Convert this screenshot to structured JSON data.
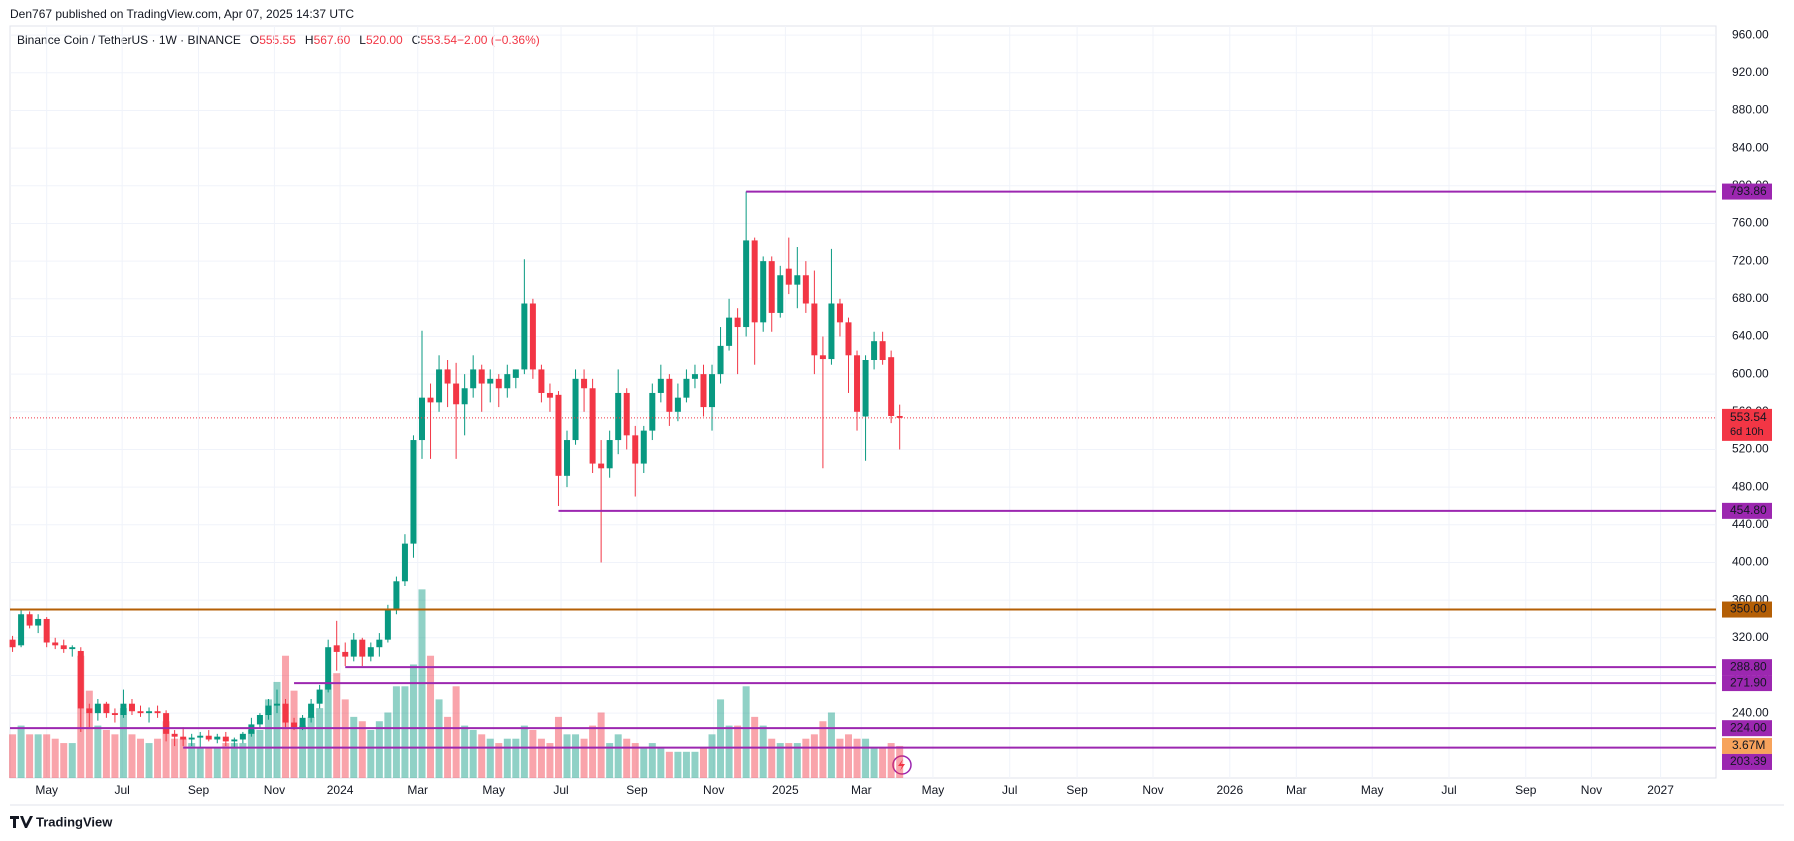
{
  "header": "Den767 published on TradingView.com, Apr 07, 2025 14:37 UTC",
  "footer": "TradingView",
  "chart_data": {
    "type": "candlestick",
    "title": "Binance Coin / TetherUS · 1W · BINANCE",
    "legend": [
      {
        "key": "O",
        "value": "555.55"
      },
      {
        "key": "H",
        "value": "567.60"
      },
      {
        "key": "L",
        "value": "520.00"
      },
      {
        "key": "C",
        "value": "553.54"
      },
      {
        "key": "",
        "value": "−2.00 (−0.36%)"
      }
    ],
    "up_color": "#089981",
    "down_color": "#f23645",
    "x": [
      0,
      1,
      2,
      3,
      4,
      5,
      6,
      7,
      8,
      9,
      10,
      11,
      12,
      13,
      14,
      15,
      16,
      17,
      18,
      19,
      20,
      21,
      22,
      23,
      24,
      25,
      26,
      27,
      28,
      29,
      30,
      31,
      32,
      33,
      34,
      35,
      36,
      37,
      38,
      39,
      40,
      41,
      42,
      43,
      44,
      45,
      46,
      47,
      48,
      49,
      50,
      51,
      52,
      53,
      54,
      55,
      56,
      57,
      58,
      59,
      60,
      61,
      62,
      63,
      64,
      65,
      66,
      67,
      68,
      69,
      70,
      71,
      72,
      73,
      74,
      75,
      76,
      77,
      78,
      79,
      80,
      81,
      82,
      83,
      84,
      85,
      86,
      87,
      88,
      89,
      90,
      91,
      92,
      93,
      94,
      95,
      96,
      97,
      98,
      99,
      100,
      101,
      102,
      103,
      104
    ],
    "open": [
      318,
      312,
      345,
      333,
      340,
      315,
      312,
      308,
      306,
      245,
      240,
      250,
      240,
      238,
      250,
      242,
      240,
      242,
      240,
      218,
      215,
      212,
      214,
      216,
      212,
      215,
      210,
      212,
      218,
      228,
      238,
      248,
      250,
      230,
      225,
      235,
      250,
      265,
      312,
      305,
      300,
      318,
      300,
      310,
      318,
      350,
      380,
      420,
      530,
      575,
      570,
      605,
      590,
      568,
      585,
      605,
      590,
      595,
      585,
      596,
      605,
      675,
      605,
      580,
      578,
      492,
      530,
      595,
      585,
      505,
      500,
      530,
      580,
      535,
      505,
      540,
      580,
      595,
      560,
      575,
      595,
      600,
      565,
      600,
      630,
      660,
      650,
      742,
      655,
      720,
      665,
      712,
      695,
      705,
      675,
      620,
      616,
      675,
      655,
      620,
      555,
      615,
      635,
      618,
      555.55
    ],
    "high": [
      322,
      350,
      348,
      345,
      342,
      320,
      318,
      312,
      310,
      250,
      255,
      252,
      245,
      265,
      255,
      248,
      246,
      248,
      243,
      222,
      225,
      218,
      220,
      222,
      218,
      220,
      214,
      220,
      235,
      240,
      255,
      265,
      255,
      235,
      238,
      255,
      270,
      318,
      338,
      315,
      325,
      320,
      315,
      325,
      355,
      385,
      430,
      535,
      646,
      590,
      620,
      615,
      612,
      600,
      620,
      610,
      605,
      600,
      610,
      605,
      722,
      680,
      610,
      590,
      582,
      540,
      605,
      605,
      595,
      530,
      540,
      605,
      585,
      545,
      545,
      590,
      610,
      600,
      590,
      605,
      610,
      610,
      610,
      650,
      680,
      670,
      794,
      745,
      725,
      725,
      715,
      745,
      735,
      720,
      710,
      640,
      733,
      680,
      660,
      625,
      620,
      645,
      645,
      625,
      567.6
    ],
    "low": [
      305,
      310,
      330,
      325,
      310,
      308,
      304,
      300,
      220,
      225,
      232,
      235,
      230,
      235,
      238,
      236,
      230,
      235,
      210,
      205,
      205,
      205,
      203,
      210,
      208,
      205,
      203,
      208,
      215,
      224,
      233,
      240,
      225,
      222,
      222,
      230,
      245,
      262,
      285,
      290,
      295,
      290,
      295,
      300,
      315,
      345,
      375,
      405,
      510,
      510,
      560,
      565,
      510,
      535,
      575,
      560,
      570,
      565,
      575,
      585,
      600,
      595,
      570,
      560,
      460,
      480,
      525,
      560,
      495,
      400,
      490,
      515,
      520,
      470,
      495,
      530,
      570,
      545,
      550,
      570,
      585,
      555,
      540,
      590,
      625,
      600,
      640,
      610,
      645,
      645,
      660,
      685,
      670,
      665,
      600,
      500,
      610,
      640,
      580,
      540,
      508,
      605,
      610,
      548,
      520
    ],
    "close": [
      310,
      345,
      333,
      340,
      315,
      312,
      308,
      310,
      245,
      240,
      250,
      240,
      238,
      250,
      242,
      240,
      242,
      240,
      218,
      215,
      212,
      214,
      216,
      212,
      215,
      210,
      212,
      218,
      228,
      238,
      248,
      250,
      230,
      225,
      235,
      250,
      265,
      310,
      305,
      300,
      318,
      300,
      310,
      318,
      350,
      380,
      420,
      530,
      575,
      570,
      605,
      590,
      568,
      585,
      605,
      590,
      595,
      585,
      600,
      605,
      675,
      605,
      580,
      575,
      492,
      530,
      595,
      585,
      505,
      500,
      530,
      580,
      535,
      505,
      540,
      580,
      595,
      560,
      575,
      595,
      600,
      565,
      600,
      630,
      660,
      650,
      742,
      655,
      720,
      665,
      705,
      695,
      705,
      675,
      620,
      616,
      675,
      655,
      620,
      560,
      615,
      635,
      615,
      555.55,
      553.54
    ],
    "volume": [
      5,
      6,
      5,
      5,
      5,
      4.5,
      4,
      4,
      14,
      10,
      6,
      5.5,
      5,
      8,
      5,
      4.5,
      4,
      4.5,
      6.5,
      4.5,
      4.5,
      4,
      3.5,
      3.5,
      3.5,
      4,
      4,
      4,
      5.5,
      5.5,
      9,
      11,
      14,
      10,
      6,
      7,
      8,
      11,
      12,
      9,
      7,
      6.5,
      5.5,
      6.5,
      7.5,
      10.5,
      10.5,
      13,
      21.6,
      14,
      9,
      7,
      10.5,
      6,
      5.5,
      5,
      4.5,
      4,
      4.5,
      4.5,
      6,
      5.5,
      4.5,
      4,
      7,
      5,
      5,
      4.5,
      6,
      7.5,
      4,
      5,
      4.5,
      4,
      3.5,
      4,
      3.5,
      3,
      3,
      3,
      3,
      3.5,
      5,
      9,
      6,
      6,
      10.5,
      7,
      6,
      4.5,
      4,
      4,
      4,
      4.5,
      5,
      6.5,
      7.5,
      4.5,
      5,
      4.5,
      4.5,
      3.5,
      3.5,
      4,
      3.67
    ],
    "volume_value_label": "3.67M",
    "volume_ylim": [
      0,
      30
    ],
    "xlim": [
      -0.3,
      199.7
    ],
    "xticks": [
      {
        "value": 4.0,
        "label": "May"
      },
      {
        "value": 12.85,
        "label": "Jul"
      },
      {
        "value": 21.8,
        "label": "Sep"
      },
      {
        "value": 30.7,
        "label": "Nov"
      },
      {
        "value": 38.4,
        "label": "2024"
      },
      {
        "value": 47.5,
        "label": "Mar"
      },
      {
        "value": 56.4,
        "label": "May"
      },
      {
        "value": 64.3,
        "label": "Jul"
      },
      {
        "value": 73.2,
        "label": "Sep"
      },
      {
        "value": 82.2,
        "label": "Nov"
      },
      {
        "value": 90.6,
        "label": "2025"
      },
      {
        "value": 99.5,
        "label": "Mar"
      },
      {
        "value": 107.9,
        "label": "May"
      },
      {
        "value": 116.9,
        "label": "Jul"
      },
      {
        "value": 124.8,
        "label": "Sep"
      },
      {
        "value": 133.7,
        "label": "Nov"
      },
      {
        "value": 142.7,
        "label": "2026"
      },
      {
        "value": 150.5,
        "label": "Mar"
      },
      {
        "value": 159.4,
        "label": "May"
      },
      {
        "value": 168.4,
        "label": "Jul"
      },
      {
        "value": 177.4,
        "label": "Sep"
      },
      {
        "value": 185.1,
        "label": "Nov"
      },
      {
        "value": 193.2,
        "label": "2027"
      }
    ],
    "ylim": [
      171.1,
      969.7
    ],
    "yticks": [
      {
        "value": 240,
        "label": "240.00"
      },
      {
        "value": 280,
        "label": "280.00"
      },
      {
        "value": 320,
        "label": "320.00"
      },
      {
        "value": 360,
        "label": "360.00"
      },
      {
        "value": 400,
        "label": "400.00"
      },
      {
        "value": 440,
        "label": "440.00"
      },
      {
        "value": 480,
        "label": "480.00"
      },
      {
        "value": 520,
        "label": "520.00"
      },
      {
        "value": 560,
        "label": "560.00"
      },
      {
        "value": 600,
        "label": "600.00"
      },
      {
        "value": 640,
        "label": "640.00"
      },
      {
        "value": 680,
        "label": "680.00"
      },
      {
        "value": 720,
        "label": "720.00"
      },
      {
        "value": 760,
        "label": "760.00"
      },
      {
        "value": 800,
        "label": "800.00"
      },
      {
        "value": 840,
        "label": "840.00"
      },
      {
        "value": 880,
        "label": "880.00"
      },
      {
        "value": 920,
        "label": "920.00"
      },
      {
        "value": 960,
        "label": "960.00"
      }
    ],
    "grid": true,
    "levels": [
      {
        "value": 793.86,
        "label": "793.86",
        "color": "#9c27b0",
        "from": 86
      },
      {
        "value": 454.8,
        "label": "454.80",
        "color": "#9c27b0",
        "from": 64
      },
      {
        "value": 350,
        "label": "350.00",
        "color": "#b45f06"
      },
      {
        "value": 288.8,
        "label": "288.80",
        "color": "#9c27b0",
        "from": 39
      },
      {
        "value": 271.9,
        "label": "271.90",
        "color": "#9c27b0",
        "from": 33
      },
      {
        "value": 224,
        "label": "224.00",
        "color": "#9c27b0"
      },
      {
        "value": 203.39,
        "label": "203.39",
        "color": "#9c27b0",
        "from": 20
      }
    ],
    "last_price": {
      "value": 553.54,
      "countdown": "6d 10h"
    }
  }
}
